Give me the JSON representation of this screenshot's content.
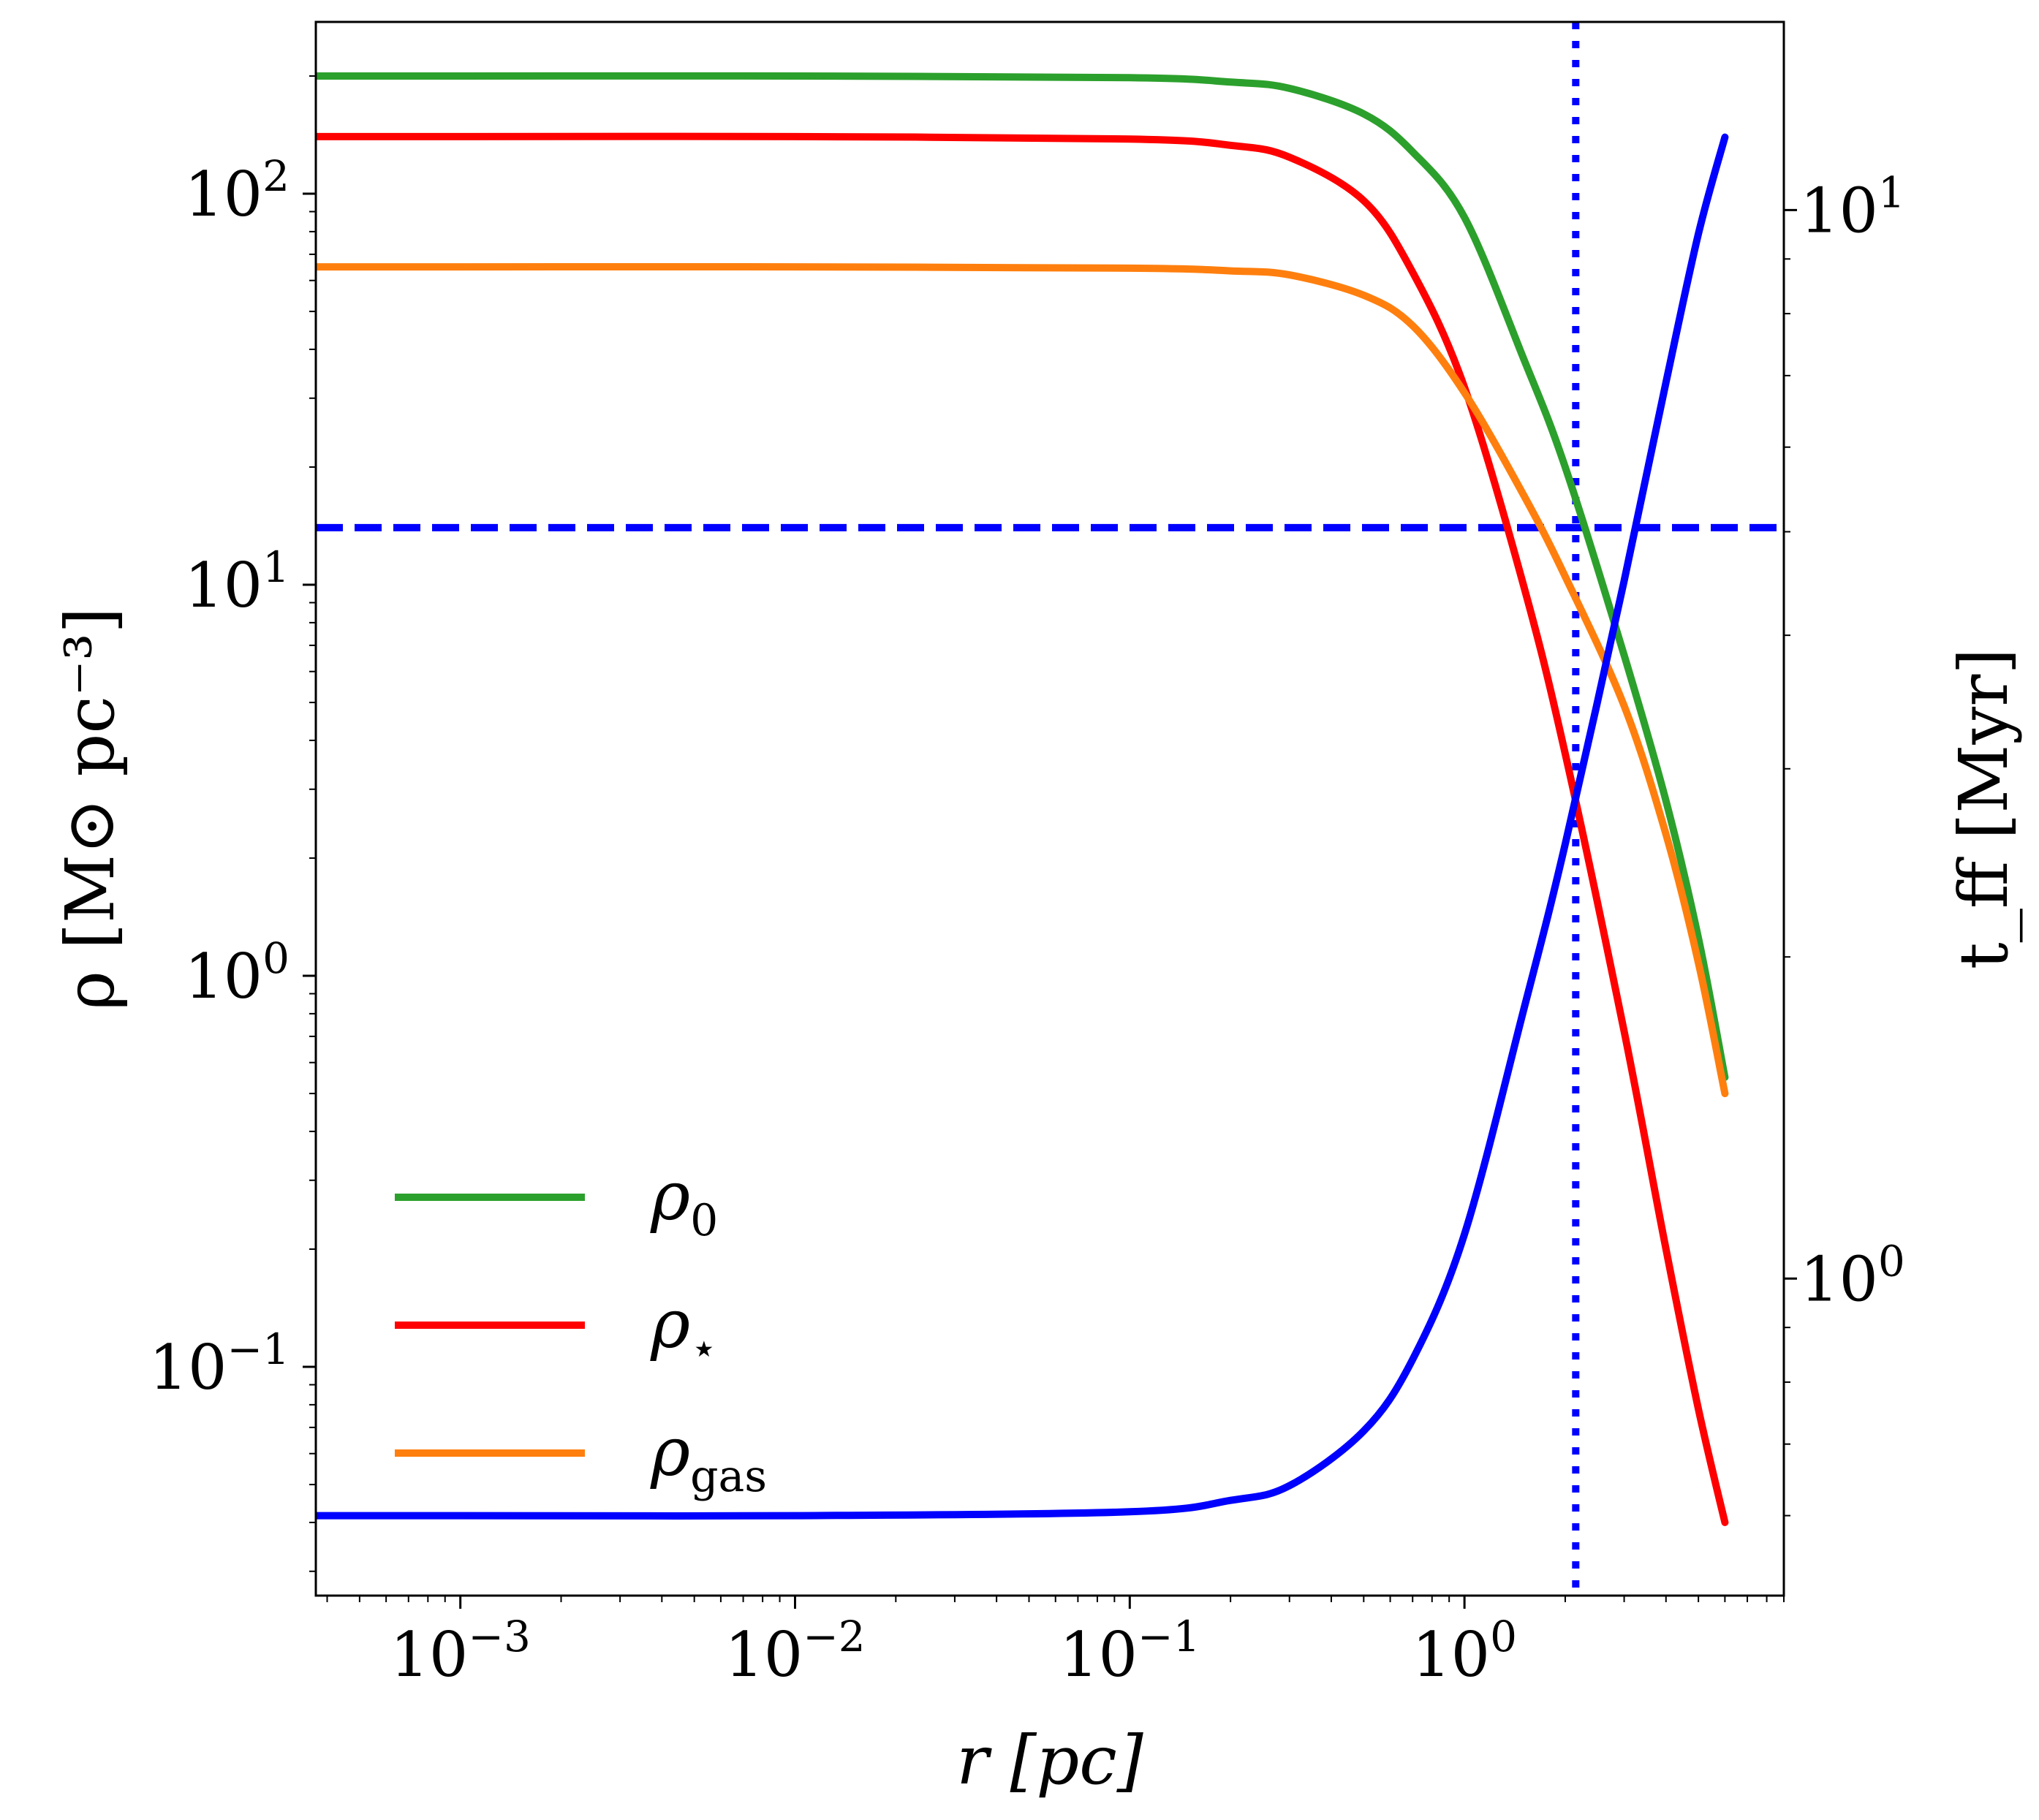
{
  "chart_data": {
    "type": "line",
    "x_scale": "log",
    "y_scale": "log",
    "y2_scale": "log",
    "xlim": [
      0.00037,
      9.0
    ],
    "ylim": [
      0.026,
      275
    ],
    "y2lim": [
      0.505,
      15.0
    ],
    "xlabel": "r [pc]",
    "ylabel": "ρ [M⊙ pc⁻³]",
    "y2label": "t_ff [Myr]",
    "x_ticks": [
      {
        "value": 0.001,
        "base": "10",
        "exp": "−3"
      },
      {
        "value": 0.01,
        "base": "10",
        "exp": "−2"
      },
      {
        "value": 0.1,
        "base": "10",
        "exp": "−1"
      },
      {
        "value": 1.0,
        "base": "10",
        "exp": "0"
      }
    ],
    "y_ticks": [
      {
        "value": 0.1,
        "base": "10",
        "exp": "−1"
      },
      {
        "value": 1.0,
        "base": "10",
        "exp": "0"
      },
      {
        "value": 10.0,
        "base": "10",
        "exp": "1"
      },
      {
        "value": 100.0,
        "base": "10",
        "exp": "2"
      }
    ],
    "y2_ticks": [
      {
        "value": 1.0,
        "base": "10",
        "exp": "0"
      },
      {
        "value": 10.0,
        "base": "10",
        "exp": "1"
      }
    ],
    "series": [
      {
        "name": "ρ0",
        "legend_main": "ρ",
        "legend_sub": "0",
        "axis": "left",
        "color": "#2ca02c",
        "style": "solid",
        "x": [
          0.00037,
          0.001,
          0.01,
          0.1,
          0.2,
          0.3,
          0.5,
          0.7,
          1.0,
          1.5,
          2.0,
          3.0,
          4.0,
          5.0,
          6.0
        ],
        "y": [
          200,
          200,
          200,
          198,
          193,
          186,
          160,
          128,
          87,
          38,
          20,
          6.6,
          2.8,
          1.25,
          0.55
        ]
      },
      {
        "name": "ρ⋆",
        "legend_main": "ρ",
        "legend_sub": "⋆",
        "axis": "left",
        "color": "#ff0000",
        "style": "solid",
        "x": [
          0.00037,
          0.001,
          0.01,
          0.1,
          0.2,
          0.3,
          0.5,
          0.7,
          1.0,
          1.5,
          2.0,
          3.0,
          4.0,
          5.0,
          6.0
        ],
        "y": [
          140,
          140,
          140,
          138,
          133,
          124,
          96,
          63,
          32,
          10,
          3.7,
          0.72,
          0.2,
          0.078,
          0.04
        ]
      },
      {
        "name": "ρgas",
        "legend_main": "ρ",
        "legend_sub": "gas",
        "axis": "left",
        "color": "#ff7f0e",
        "style": "solid",
        "x": [
          0.00037,
          0.001,
          0.01,
          0.1,
          0.2,
          0.3,
          0.5,
          0.7,
          1.0,
          1.5,
          2.0,
          3.0,
          4.0,
          5.0,
          6.0
        ],
        "y": [
          65,
          65,
          65,
          64.5,
          63.5,
          62,
          55,
          46,
          31,
          17,
          10.5,
          4.9,
          2.3,
          1.08,
          0.5
        ]
      },
      {
        "name": "t_ff",
        "axis": "right",
        "color": "#0000ff",
        "style": "solid",
        "x": [
          0.00037,
          0.001,
          0.01,
          0.1,
          0.2,
          0.3,
          0.5,
          0.7,
          1.0,
          1.5,
          2.0,
          3.0,
          4.0,
          5.0,
          6.0
        ],
        "y": [
          0.6,
          0.6,
          0.6,
          0.605,
          0.62,
          0.64,
          0.72,
          0.84,
          1.1,
          1.78,
          2.55,
          4.5,
          6.9,
          9.5,
          11.7
        ]
      }
    ],
    "reference_lines": [
      {
        "orientation": "horizontal",
        "axis": "left",
        "value": 14.0,
        "color": "#0000ff",
        "style": "dashed"
      },
      {
        "orientation": "vertical",
        "value": 2.15,
        "color": "#0000ff",
        "style": "dotted"
      }
    ],
    "legend_position": "lower-left",
    "grid": false
  }
}
